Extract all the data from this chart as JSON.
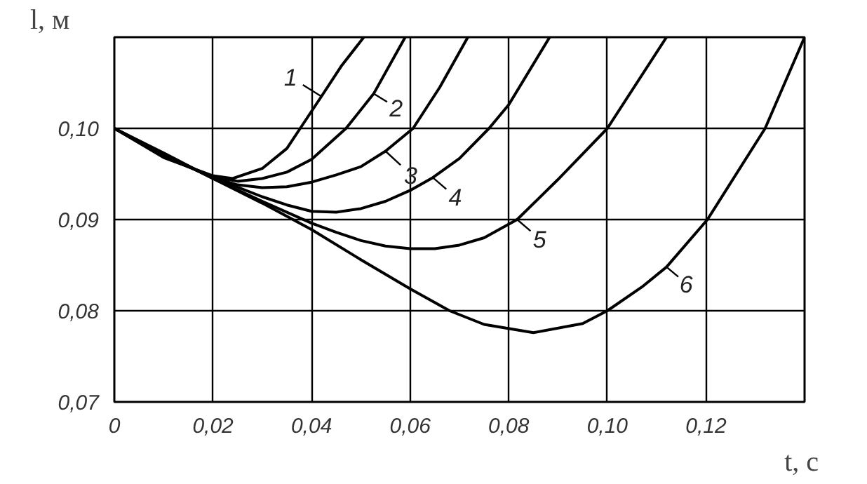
{
  "chart_data": {
    "type": "line",
    "xlabel": "t, с",
    "ylabel": "l, м",
    "xlim": [
      0,
      0.14
    ],
    "ylim": [
      0.07,
      0.11
    ],
    "xticks": [
      {
        "value": 0,
        "label": "0"
      },
      {
        "value": 0.02,
        "label": "0,02"
      },
      {
        "value": 0.04,
        "label": "0,04"
      },
      {
        "value": 0.06,
        "label": "0,06"
      },
      {
        "value": 0.08,
        "label": "0,08"
      },
      {
        "value": 0.1,
        "label": "0,10"
      },
      {
        "value": 0.12,
        "label": "0,12"
      }
    ],
    "yticks": [
      {
        "value": 0.07,
        "label": "0,07"
      },
      {
        "value": 0.08,
        "label": "0,08"
      },
      {
        "value": 0.09,
        "label": "0,09"
      },
      {
        "value": 0.1,
        "label": "0,10"
      }
    ],
    "grid": true,
    "marker": "none",
    "line_style": "solid",
    "series": [
      {
        "color": "#000000",
        "x": [
          0,
          0.01,
          0.02,
          0.024,
          0.03,
          0.035,
          0.0377,
          0.042,
          0.046,
          0.0506
        ],
        "values": [
          0.1,
          0.0968,
          0.0948,
          0.0945,
          0.0956,
          0.0978,
          0.1,
          0.1035,
          0.1068,
          0.11
        ]
      },
      {
        "color": "#000000",
        "x": [
          0,
          0.01,
          0.02,
          0.025,
          0.03,
          0.035,
          0.04,
          0.047,
          0.0526,
          0.059
        ],
        "values": [
          0.1,
          0.0969,
          0.0947,
          0.0942,
          0.0945,
          0.0952,
          0.0966,
          0.1,
          0.1038,
          0.11
        ]
      },
      {
        "color": "#000000",
        "x": [
          0,
          0.01,
          0.02,
          0.025,
          0.03,
          0.035,
          0.04,
          0.045,
          0.05,
          0.055,
          0.0606,
          0.066,
          0.0717
        ],
        "values": [
          0.1,
          0.097,
          0.0946,
          0.0938,
          0.0935,
          0.0936,
          0.0941,
          0.0949,
          0.0958,
          0.0975,
          0.1,
          0.1045,
          0.11
        ]
      },
      {
        "color": "#000000",
        "x": [
          0,
          0.01,
          0.02,
          0.03,
          0.035,
          0.04,
          0.045,
          0.05,
          0.055,
          0.06,
          0.0646,
          0.07,
          0.076,
          0.08,
          0.0883
        ],
        "values": [
          0.1,
          0.0971,
          0.0946,
          0.0925,
          0.0916,
          0.0909,
          0.0908,
          0.0912,
          0.092,
          0.0932,
          0.0946,
          0.0967,
          0.1,
          0.1026,
          0.11
        ]
      },
      {
        "color": "#000000",
        "x": [
          0,
          0.01,
          0.02,
          0.03,
          0.04,
          0.045,
          0.05,
          0.055,
          0.06,
          0.065,
          0.07,
          0.075,
          0.0817,
          0.09,
          0.1,
          0.112
        ],
        "values": [
          0.1,
          0.0972,
          0.0945,
          0.092,
          0.0896,
          0.0886,
          0.0877,
          0.0871,
          0.0868,
          0.0868,
          0.0872,
          0.088,
          0.09,
          0.0944,
          0.1,
          0.11
        ]
      },
      {
        "color": "#000000",
        "x": [
          0,
          0.01,
          0.02,
          0.03,
          0.04,
          0.05,
          0.06,
          0.068,
          0.075,
          0.085,
          0.095,
          0.1,
          0.107,
          0.112,
          0.1203,
          0.132,
          0.14
        ],
        "values": [
          0.1,
          0.0973,
          0.0945,
          0.0918,
          0.0889,
          0.0856,
          0.0824,
          0.08,
          0.0785,
          0.0776,
          0.0786,
          0.08,
          0.0826,
          0.0848,
          0.09,
          0.1,
          0.11
        ]
      }
    ],
    "annotations": [
      {
        "text": "1",
        "x": 0.042,
        "y": 0.1035
      },
      {
        "text": "2",
        "x": 0.0526,
        "y": 0.1038
      },
      {
        "text": "3",
        "x": 0.055,
        "y": 0.0975
      },
      {
        "text": "4",
        "x": 0.0646,
        "y": 0.0946
      },
      {
        "text": "5",
        "x": 0.0817,
        "y": 0.09
      },
      {
        "text": "6",
        "x": 0.112,
        "y": 0.0848
      }
    ]
  }
}
